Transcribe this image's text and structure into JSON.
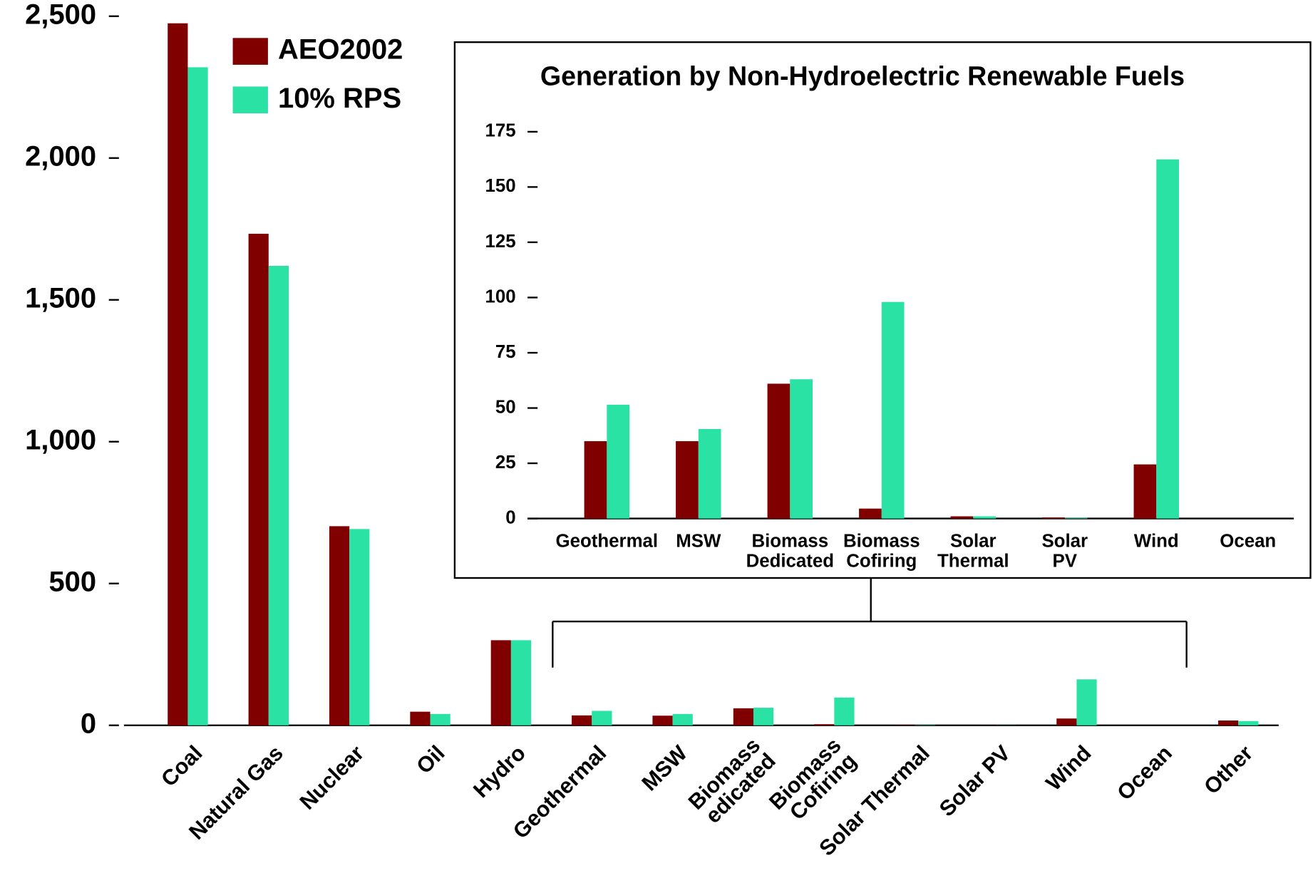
{
  "chart_data": [
    {
      "type": "bar",
      "categories": [
        "Coal",
        "Natural Gas",
        "Nuclear",
        "Oil",
        "Hydro",
        "Geothermal",
        "MSW",
        "Biomass\nedicated",
        "Biomass\nCofiring",
        "Solar Thermal",
        "Solar PV",
        "Wind",
        "Ocean",
        "Other"
      ],
      "series": [
        {
          "name": "AEO2002",
          "color": "#800000",
          "values": [
            2475,
            1733,
            702,
            48,
            300,
            35,
            34,
            60,
            4,
            1,
            0.5,
            24,
            0,
            17
          ]
        },
        {
          "name": "10% RPS",
          "color": "#29e2a4",
          "values": [
            2320,
            1620,
            692,
            40,
            300,
            51,
            40,
            62,
            98,
            1,
            0.4,
            162,
            0,
            15
          ]
        }
      ],
      "ylim": [
        0,
        2500
      ],
      "yticks": [
        0,
        500,
        {
          "value": 1000,
          "label": "1,000"
        },
        {
          "value": 1500,
          "label": "1,500"
        },
        {
          "value": 2000,
          "label": "2,000"
        },
        {
          "value": 2500,
          "label": "2,500"
        }
      ],
      "legend": "top-left"
    },
    {
      "type": "bar",
      "title": "Generation by Non-Hydroelectric Renewable Fuels",
      "categories": [
        "Geothermal",
        "MSW",
        "Biomass\nDedicated",
        "Biomass\nCofiring",
        "Solar\nThermal",
        "Solar\nPV",
        "Wind",
        "Ocean"
      ],
      "series": [
        {
          "name": "AEO2002",
          "color": "#800000",
          "values": [
            35,
            35,
            61,
            4.5,
            1,
            0.5,
            24.5,
            0
          ]
        },
        {
          "name": "10% RPS",
          "color": "#29e2a4",
          "values": [
            51.5,
            40.5,
            63,
            98,
            1,
            0.3,
            162.5,
            0
          ]
        }
      ],
      "ylim": [
        0,
        175
      ],
      "yticks": [
        0,
        25,
        50,
        75,
        100,
        125,
        150,
        175
      ]
    }
  ]
}
